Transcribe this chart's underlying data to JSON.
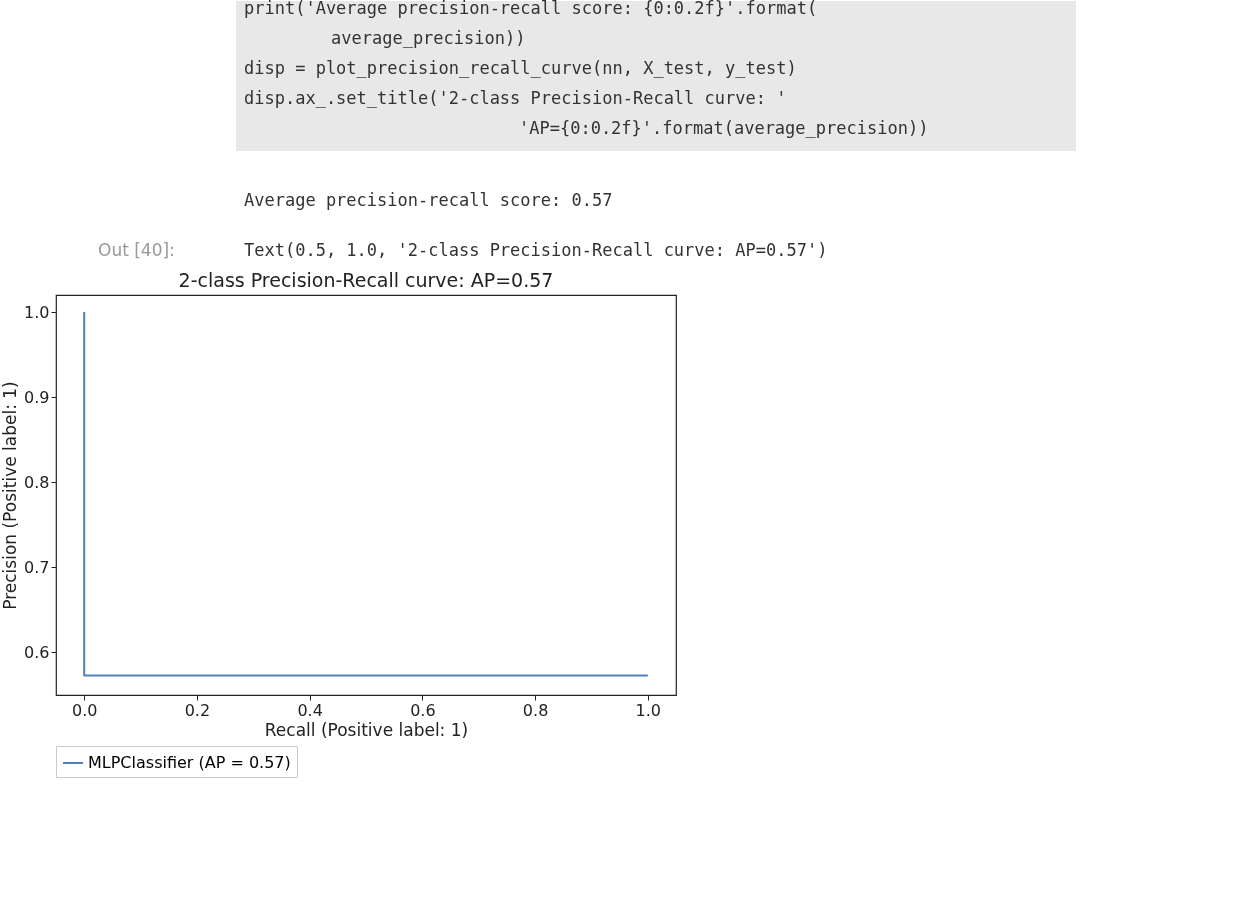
{
  "chart_data": {
    "type": "step",
    "title": "2-class Precision-Recall curve: AP=0.57",
    "xlabel": "Recall (Positive label: 1)",
    "ylabel": "Precision (Positive label: 1)",
    "x": [
      1,
      0
    ],
    "series": [
      {
        "name": "MLPClassifier (AP = 0.57)",
        "color": "#4f81bd",
        "values": [
          0.573,
          1.0
        ]
      }
    ],
    "xlim": [
      -0.05,
      1.05
    ],
    "xticks": [
      {
        "value": 0,
        "label": "0.0"
      },
      0.2,
      0.4,
      0.6,
      0.8,
      {
        "value": 1,
        "label": "1.0"
      }
    ],
    "ylim": [
      0.55,
      1.02
    ],
    "yticks": [
      0.6,
      0.7,
      0.8,
      0.9,
      {
        "value": 1,
        "label": "1.0"
      }
    ],
    "grid": false,
    "legend": "bottom",
    "marker": "none",
    "line_style": "solid",
    "annotations": [
      "print('Average precision-recall score: {0:0.2f}'.format(",
      "average_precision))",
      "disp = plot_precision_recall_curve(nn, X_test, y_test)",
      "disp.ax_.set_title('2-class Precision-Recall curve: '",
      "'AP={0:0.2f}'.format(average_precision))",
      "Average precision-recall score: 0.57",
      "Out [40]:",
      "Text(0.5, 1.0, '2-class Precision-Recall curve: AP=0.57')"
    ]
  }
}
